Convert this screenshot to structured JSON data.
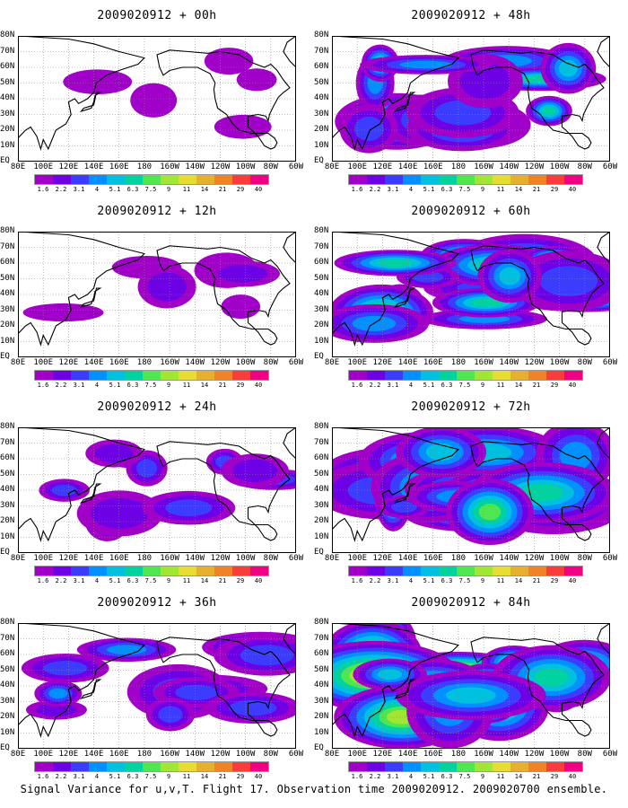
{
  "panels": [
    {
      "title": "2009020912 + 00h",
      "intensity": 0.05
    },
    {
      "title": "2009020912 + 12h",
      "intensity": 0.18
    },
    {
      "title": "2009020912 + 24h",
      "intensity": 0.32
    },
    {
      "title": "2009020912 + 36h",
      "intensity": 0.45
    },
    {
      "title": "2009020912 + 48h",
      "intensity": 0.58
    },
    {
      "title": "2009020912 + 60h",
      "intensity": 0.7
    },
    {
      "title": "2009020912 + 72h",
      "intensity": 0.82
    },
    {
      "title": "2009020912 + 84h",
      "intensity": 0.92
    }
  ],
  "y_labels": [
    "80N",
    "70N",
    "60N",
    "50N",
    "40N",
    "30N",
    "20N",
    "10N",
    "EQ"
  ],
  "x_labels": [
    "80E",
    "100E",
    "120E",
    "140E",
    "160E",
    "180",
    "160W",
    "140W",
    "120W",
    "100W",
    "80W",
    "60W"
  ],
  "colorbar_labels": [
    "1.6",
    "2.2",
    "3.1",
    "4",
    "5.1",
    "6.3",
    "7.5",
    "9",
    "11",
    "14",
    "21",
    "29",
    "40"
  ],
  "colorbar_colors": [
    "#a000c8",
    "#6e00e6",
    "#3c3cff",
    "#0090ff",
    "#00c0e0",
    "#00d2a0",
    "#50e650",
    "#a0e632",
    "#e6dc32",
    "#e6af2d",
    "#f08228",
    "#fa3c3c",
    "#f00082"
  ],
  "footer": "Signal Variance for u,v,T. Flight 17. Observation time 2009020912. 2009020700 ensemble."
}
